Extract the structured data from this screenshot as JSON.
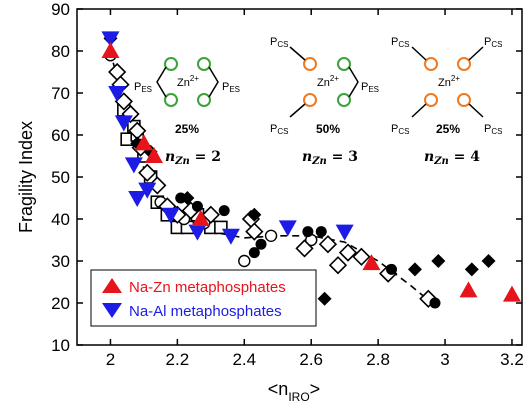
{
  "chart_data": {
    "type": "scatter",
    "xlabel": "<n",
    "xlabel_sub": "IRO",
    "xlabel_end": ">",
    "ylabel": "Fragility Index",
    "xlim": [
      1.9,
      3.23
    ],
    "ylim": [
      10,
      90
    ],
    "xticks": [
      "2",
      "2.2",
      "2.4",
      "2.6",
      "2.8",
      "3",
      "3.2"
    ],
    "xtick_values": [
      2,
      2.2,
      2.4,
      2.6,
      2.8,
      3,
      3.2
    ],
    "yticks": [
      "10",
      "20",
      "30",
      "40",
      "50",
      "60",
      "70",
      "80",
      "90"
    ],
    "ytick_values": [
      10,
      20,
      30,
      40,
      50,
      60,
      70,
      80,
      90
    ],
    "legend": {
      "position": "bottom-left",
      "entries": [
        {
          "label": "Na-Zn metaphosphates",
          "color": "#e8141b",
          "marker": "triangle-up"
        },
        {
          "label": "Na-Al metaphosphates",
          "color": "#1c1ce6",
          "marker": "triangle-down"
        }
      ]
    },
    "trend_line": [
      [
        2.0,
        80
      ],
      [
        2.03,
        70
      ],
      [
        2.07,
        60
      ],
      [
        2.1,
        52
      ],
      [
        2.15,
        45
      ],
      [
        2.2,
        40.5
      ],
      [
        2.3,
        37
      ],
      [
        2.4,
        35.5
      ],
      [
        2.5,
        36
      ],
      [
        2.6,
        36
      ],
      [
        2.7,
        34.5
      ],
      [
        2.8,
        30
      ],
      [
        2.9,
        24
      ],
      [
        2.96,
        20
      ]
    ],
    "series": [
      {
        "name": "Na-Zn metaphosphates",
        "marker": "triangle-up",
        "color": "#e8141b",
        "points": [
          [
            2.0,
            80
          ],
          [
            2.1,
            58
          ],
          [
            2.13,
            55
          ],
          [
            2.27,
            40
          ],
          [
            2.78,
            29.5
          ],
          [
            3.07,
            23
          ],
          [
            3.2,
            22
          ]
        ]
      },
      {
        "name": "Na-Al metaphosphates",
        "marker": "triangle-down",
        "color": "#1c1ce6",
        "points": [
          [
            2.0,
            83
          ],
          [
            2.02,
            70
          ],
          [
            2.04,
            63
          ],
          [
            2.07,
            53
          ],
          [
            2.08,
            45
          ],
          [
            2.11,
            47
          ],
          [
            2.18,
            41
          ],
          [
            2.26,
            37
          ],
          [
            2.36,
            36
          ],
          [
            2.53,
            38
          ],
          [
            2.7,
            37
          ]
        ]
      },
      {
        "marker": "open-diamond",
        "points": [
          [
            2.02,
            75
          ],
          [
            2.03,
            72
          ],
          [
            2.04,
            68
          ],
          [
            2.06,
            65
          ],
          [
            2.08,
            61
          ],
          [
            2.09,
            57
          ],
          [
            2.11,
            51
          ],
          [
            2.14,
            48
          ],
          [
            2.17,
            43
          ],
          [
            2.2,
            41
          ],
          [
            2.24,
            42
          ],
          [
            2.3,
            41
          ],
          [
            2.42,
            40
          ],
          [
            2.43,
            37
          ],
          [
            2.58,
            33
          ],
          [
            2.65,
            34
          ],
          [
            2.68,
            29
          ],
          [
            2.71,
            32
          ],
          [
            2.75,
            31
          ],
          [
            2.83,
            27
          ],
          [
            2.95,
            21
          ]
        ]
      },
      {
        "marker": "open-square",
        "points": [
          [
            2.04,
            66
          ],
          [
            2.05,
            59
          ],
          [
            2.07,
            62
          ],
          [
            2.08,
            60
          ],
          [
            2.1,
            55
          ],
          [
            2.12,
            50
          ],
          [
            2.14,
            44
          ],
          [
            2.17,
            41
          ],
          [
            2.2,
            38
          ],
          [
            2.23,
            38
          ],
          [
            2.26,
            41
          ],
          [
            2.3,
            38
          ],
          [
            2.33,
            38
          ]
        ]
      },
      {
        "marker": "open-circle",
        "points": [
          [
            2.0,
            79
          ],
          [
            2.15,
            44
          ],
          [
            2.22,
            40
          ],
          [
            2.28,
            39
          ],
          [
            2.4,
            30
          ],
          [
            2.48,
            36
          ],
          [
            2.6,
            35
          ]
        ]
      },
      {
        "marker": "filled-circle",
        "points": [
          [
            2.21,
            45
          ],
          [
            2.26,
            43
          ],
          [
            2.34,
            42
          ],
          [
            2.43,
            32
          ],
          [
            2.45,
            34
          ],
          [
            2.59,
            37
          ],
          [
            2.63,
            37
          ],
          [
            2.84,
            28
          ],
          [
            2.97,
            20
          ]
        ]
      },
      {
        "marker": "filled-diamond",
        "points": [
          [
            2.0,
            83
          ],
          [
            2.08,
            58
          ],
          [
            2.12,
            56
          ],
          [
            2.23,
            45
          ],
          [
            2.43,
            41
          ],
          [
            2.64,
            21
          ],
          [
            2.91,
            28
          ],
          [
            2.98,
            30
          ],
          [
            3.08,
            28
          ],
          [
            3.13,
            30
          ]
        ]
      }
    ]
  },
  "inset": {
    "nzn2": {
      "pct": "25%",
      "label": "n",
      "sub": "Zn",
      "val": " = 2",
      "l1": "P",
      "l1s": "ES",
      "l2": "P",
      "l2s": "ES",
      "ion": "Zn",
      "ionsup": "2+"
    },
    "nzn3": {
      "pct": "50%",
      "label": "n",
      "sub": "Zn",
      "val": " = 3",
      "l1": "P",
      "l1s": "CS",
      "l2": "P",
      "l2s": "CS",
      "l3": "P",
      "l3s": "ES",
      "ion": "Zn",
      "ionsup": "2+"
    },
    "nzn4": {
      "pct": "25%",
      "label": "n",
      "sub": "Zn",
      "val": " = 4",
      "l1": "P",
      "l1s": "CS",
      "l2": "P",
      "l2s": "CS",
      "l3": "P",
      "l3s": "CS",
      "l4": "P",
      "l4s": "CS",
      "ion": "Zn",
      "ionsup": "2+"
    }
  },
  "colors": {
    "green": "#3aa33a",
    "orange": "#ef7a22",
    "red": "#e8141b",
    "blue": "#1c1ce6"
  }
}
